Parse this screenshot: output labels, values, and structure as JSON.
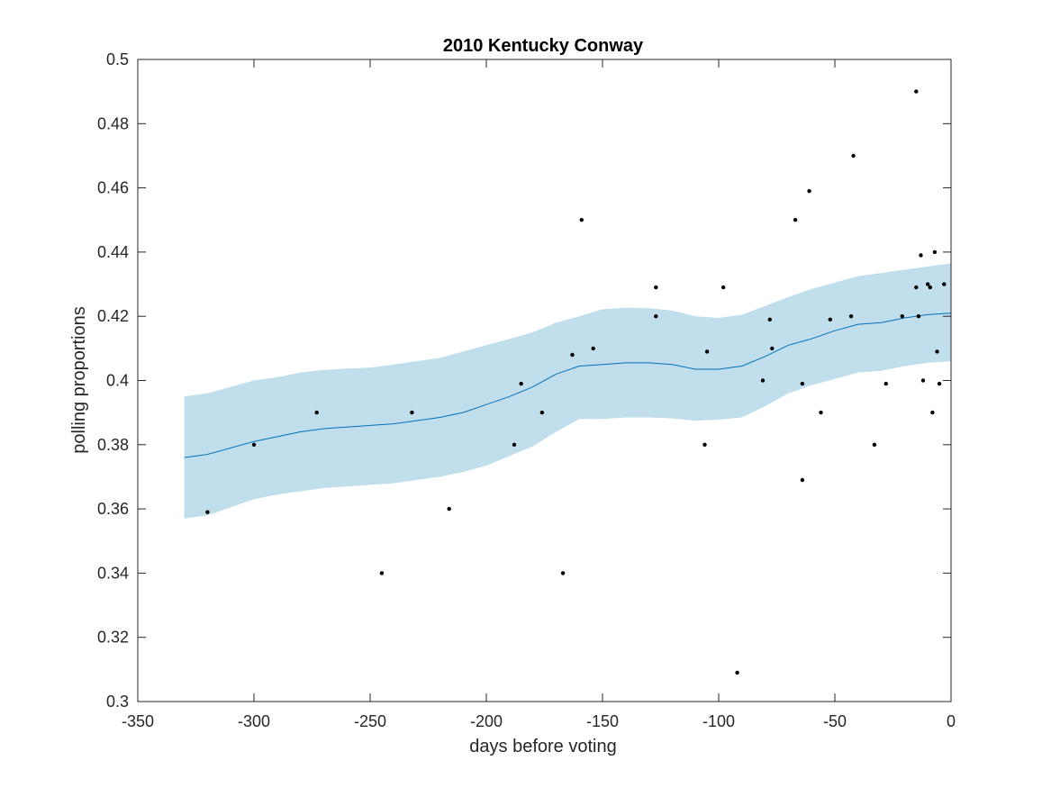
{
  "chart_data": {
    "type": "scatter",
    "title": "2010 Kentucky Conway",
    "xlabel": "days before voting",
    "ylabel": "polling proportions",
    "xlim": [
      -350,
      0
    ],
    "ylim": [
      0.3,
      0.5
    ],
    "xticks": [
      -350,
      -300,
      -250,
      -200,
      -150,
      -100,
      -50,
      0
    ],
    "xtick_labels": [
      "-350",
      "-300",
      "-250",
      "-200",
      "-150",
      "-100",
      "-50",
      "0"
    ],
    "yticks": [
      0.3,
      0.32,
      0.34,
      0.36,
      0.38,
      0.4,
      0.42,
      0.44,
      0.46,
      0.48,
      0.5
    ],
    "ytick_labels": [
      "0.3",
      "0.32",
      "0.34",
      "0.36",
      "0.38",
      "0.4",
      "0.42",
      "0.44",
      "0.46",
      "0.48",
      "0.5"
    ],
    "grid": false,
    "colors": {
      "points": "#000000",
      "trend": "#0072bd",
      "band": "#c1deec",
      "axes": "#262626"
    },
    "series": [
      {
        "kind": "points",
        "x": [
          -320,
          -300,
          -273,
          -245,
          -232,
          -216,
          -188,
          -185,
          -176,
          -167,
          -163,
          -159,
          -154,
          -127,
          -127,
          -106,
          -105,
          -98,
          -92,
          -81,
          -78,
          -77,
          -67,
          -64,
          -64,
          -61,
          -56,
          -52,
          -43,
          -42,
          -33,
          -28,
          -21,
          -15,
          -15,
          -14,
          -13,
          -12,
          -10,
          -9,
          -8,
          -7,
          -6,
          -5,
          -3
        ],
        "y": [
          0.359,
          0.38,
          0.39,
          0.34,
          0.39,
          0.36,
          0.38,
          0.399,
          0.39,
          0.34,
          0.408,
          0.45,
          0.41,
          0.429,
          0.42,
          0.38,
          0.409,
          0.429,
          0.309,
          0.4,
          0.419,
          0.41,
          0.45,
          0.399,
          0.369,
          0.459,
          0.39,
          0.419,
          0.42,
          0.47,
          0.38,
          0.399,
          0.42,
          0.49,
          0.429,
          0.42,
          0.439,
          0.4,
          0.43,
          0.429,
          0.39,
          0.44,
          0.409,
          0.399,
          0.43
        ]
      },
      {
        "kind": "trend",
        "x": [
          -330,
          -320,
          -310,
          -300,
          -290,
          -280,
          -270,
          -260,
          -250,
          -240,
          -230,
          -220,
          -210,
          -200,
          -190,
          -180,
          -170,
          -160,
          -150,
          -140,
          -130,
          -120,
          -110,
          -100,
          -90,
          -80,
          -70,
          -60,
          -50,
          -40,
          -30,
          -20,
          -10,
          0
        ],
        "y": [
          0.376,
          0.377,
          0.379,
          0.381,
          0.3825,
          0.384,
          0.385,
          0.3855,
          0.386,
          0.3865,
          0.3875,
          0.3885,
          0.39,
          0.3925,
          0.395,
          0.398,
          0.402,
          0.4045,
          0.405,
          0.4055,
          0.4055,
          0.405,
          0.4035,
          0.4035,
          0.4045,
          0.4075,
          0.411,
          0.413,
          0.4155,
          0.4175,
          0.418,
          0.4195,
          0.4205,
          0.421
        ],
        "upper": [
          0.395,
          0.396,
          0.398,
          0.4,
          0.401,
          0.4025,
          0.4033,
          0.4037,
          0.404,
          0.405,
          0.406,
          0.407,
          0.409,
          0.411,
          0.413,
          0.415,
          0.418,
          0.42,
          0.4222,
          0.4227,
          0.4225,
          0.4218,
          0.42,
          0.4195,
          0.4205,
          0.4232,
          0.426,
          0.4285,
          0.4305,
          0.4325,
          0.4335,
          0.4345,
          0.4355,
          0.4365
        ],
        "lower": [
          0.357,
          0.358,
          0.3605,
          0.363,
          0.3645,
          0.3655,
          0.3665,
          0.367,
          0.3675,
          0.368,
          0.369,
          0.37,
          0.3715,
          0.3735,
          0.3765,
          0.3795,
          0.384,
          0.388,
          0.388,
          0.3885,
          0.3885,
          0.3882,
          0.3875,
          0.3878,
          0.3885,
          0.392,
          0.396,
          0.3985,
          0.4005,
          0.4025,
          0.403,
          0.4045,
          0.4055,
          0.406
        ]
      }
    ]
  }
}
